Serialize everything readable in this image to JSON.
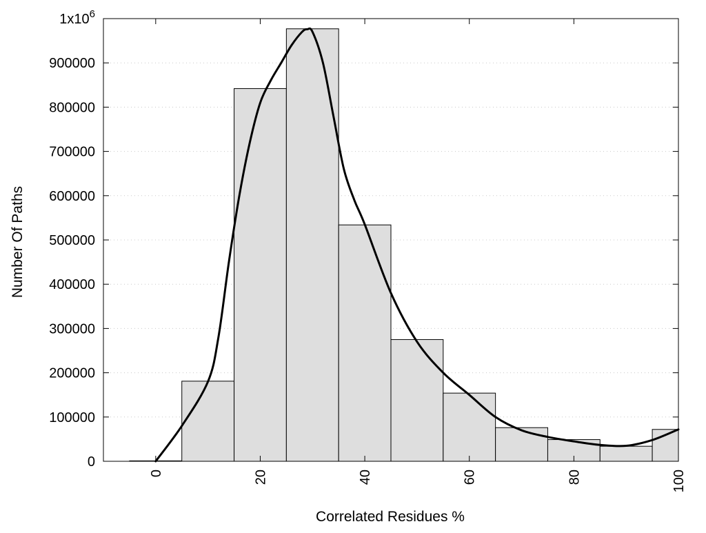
{
  "chart_data": {
    "type": "bar",
    "title": "",
    "xlabel": "Correlated Residues %",
    "ylabel": "Number Of Paths",
    "xlim": [
      -10,
      100
    ],
    "ylim": [
      0,
      1000000
    ],
    "grid": "horizontal-dotted",
    "bar_color": "#dedede",
    "x_ticks": [
      0,
      20,
      40,
      60,
      80,
      100
    ],
    "x_tick_labels": [
      "0",
      "20",
      "40",
      "60",
      "80",
      "100"
    ],
    "y_ticks": [
      0,
      100000,
      200000,
      300000,
      400000,
      500000,
      600000,
      700000,
      800000,
      900000,
      1000000
    ],
    "y_tick_labels": [
      "0",
      "100000",
      "200000",
      "300000",
      "400000",
      "500000",
      "600000",
      "700000",
      "800000",
      "900000",
      "1x10⁶"
    ],
    "bars": [
      {
        "x": 0,
        "value": 1000
      },
      {
        "x": 10,
        "value": 181000
      },
      {
        "x": 20,
        "value": 842000
      },
      {
        "x": 30,
        "value": 977000
      },
      {
        "x": 40,
        "value": 534000
      },
      {
        "x": 50,
        "value": 275000
      },
      {
        "x": 60,
        "value": 154000
      },
      {
        "x": 70,
        "value": 76000
      },
      {
        "x": 80,
        "value": 49000
      },
      {
        "x": 90,
        "value": 34000
      },
      {
        "x": 100,
        "value": 72000
      }
    ],
    "bin_width": 10,
    "curve": {
      "x": [
        0,
        5,
        10,
        12,
        14,
        16,
        18,
        20,
        22,
        24,
        26,
        28,
        29,
        30,
        32,
        34,
        36,
        38,
        40,
        45,
        50,
        55,
        60,
        65,
        70,
        75,
        80,
        85,
        90,
        95,
        100
      ],
      "y": [
        0,
        80000,
        180000,
        280000,
        450000,
        600000,
        720000,
        810000,
        860000,
        900000,
        940000,
        970000,
        976000,
        970000,
        900000,
        780000,
        660000,
        590000,
        535000,
        380000,
        270000,
        200000,
        150000,
        100000,
        70000,
        55000,
        45000,
        37000,
        35000,
        48000,
        72000
      ]
    }
  }
}
